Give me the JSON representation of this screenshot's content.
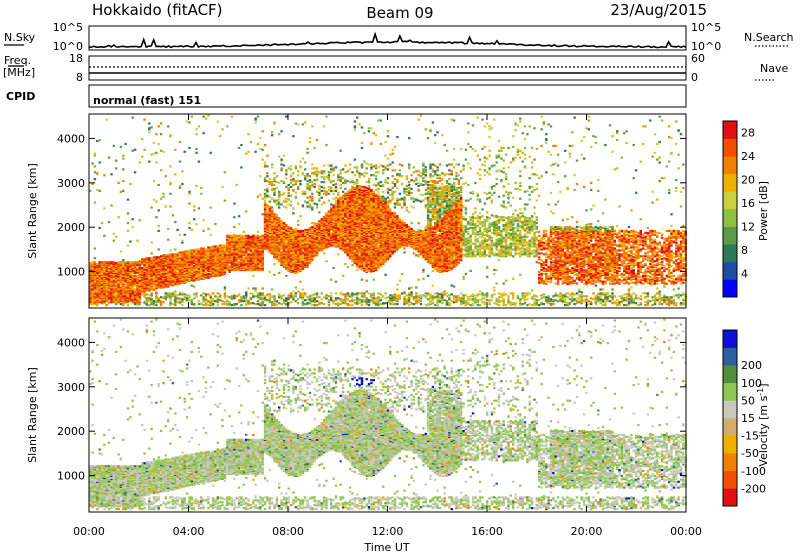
{
  "header": {
    "station": "Hokkaido (fitACF)",
    "beam": "Beam 09",
    "date": "23/Aug/2015"
  },
  "strip_panels": {
    "nsky_label": "N.Sky",
    "nsky_ticks": [
      "10^5",
      "10^0"
    ],
    "nsearch_label": "N.Search",
    "nsearch_ticks": [
      "10^5",
      "10^0"
    ],
    "freq_label_1": "Freq.",
    "freq_label_2": "[MHz]",
    "freq_ticks": [
      "18",
      "8"
    ],
    "nave_label": "Nave",
    "nave_ticks": [
      "60",
      "0"
    ],
    "cpid_label": "CPID",
    "cpid_value": "normal (fast) 151"
  },
  "colors": {
    "power_scale": [
      "#0000ff",
      "#1e4fa0",
      "#2e7a56",
      "#5f9a48",
      "#8fbf40",
      "#c8d040",
      "#f0b000",
      "#f08000",
      "#f05000",
      "#e01010"
    ],
    "velocity_scale": [
      "#e01010",
      "#f05000",
      "#f08000",
      "#f0b000",
      "#d2ae6a",
      "#c8c8c0",
      "#8fc850",
      "#4f8f3e",
      "#2e5fa0",
      "#1010d0"
    ]
  },
  "chart_data": [
    {
      "type": "heatmap",
      "name": "power",
      "ylabel": "Slant Range [km]",
      "y_ticks": [
        1000,
        2000,
        3000,
        4000
      ],
      "ylim": [
        180,
        4550
      ],
      "xlim": [
        0,
        24
      ],
      "colorbar_label": "Power [dB]",
      "colorbar_ticks": [
        "4",
        "8",
        "12",
        "16",
        "20",
        "24",
        "28"
      ],
      "colorbar_range": [
        0,
        30
      ]
    },
    {
      "type": "heatmap",
      "name": "velocity",
      "ylabel": "Slant Range [km]",
      "y_ticks": [
        1000,
        2000,
        3000,
        4000
      ],
      "ylim": [
        180,
        4550
      ],
      "xlim": [
        0,
        24
      ],
      "xlabel": "Time UT",
      "x_ticks": [
        "00:00",
        "04:00",
        "08:00",
        "12:00",
        "16:00",
        "20:00",
        "00:00"
      ],
      "colorbar_label": "Velocity [m s",
      "colorbar_label_sup": "-1",
      "colorbar_label_end": "]",
      "colorbar_ticks": [
        "-200",
        "-100",
        "-50",
        "-15",
        "15",
        "50",
        "100",
        "200"
      ]
    }
  ]
}
